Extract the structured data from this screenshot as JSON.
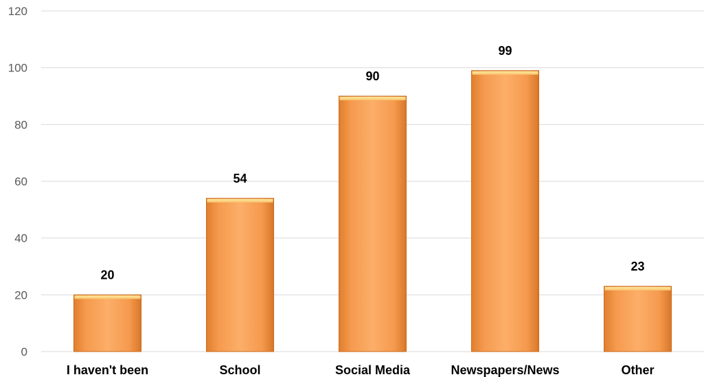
{
  "chart_data": {
    "type": "bar",
    "categories": [
      "I haven't been",
      "School",
      "Social Media",
      "Newspapers/News",
      "Other"
    ],
    "values": [
      20,
      54,
      90,
      99,
      23
    ],
    "data_labels": [
      "20",
      "54",
      "90",
      "99",
      "23"
    ],
    "title": "",
    "xlabel": "",
    "ylabel": "",
    "ylim": [
      0,
      120
    ],
    "yticks": [
      "0",
      "20",
      "40",
      "60",
      "80",
      "100",
      "120"
    ],
    "grid": true,
    "legend": "none",
    "colors": {
      "bar_fill": "#f9a35a",
      "bar_edge": "#c96a1c",
      "bar_top": "#ffe08a"
    }
  }
}
